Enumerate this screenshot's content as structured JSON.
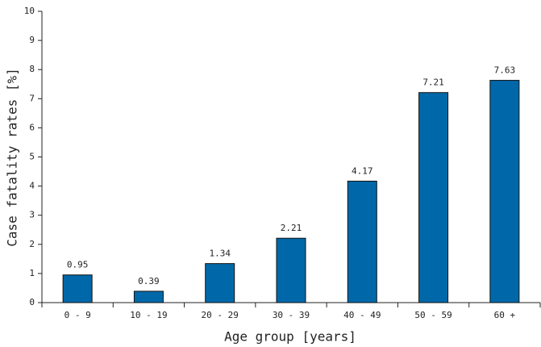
{
  "chart_data": {
    "type": "bar",
    "x_label": "Age group [years]",
    "y_label": "Case fatality rates [%]",
    "categories": [
      "0 - 9",
      "10 - 19",
      "20 - 29",
      "30 - 39",
      "40 - 49",
      "50 - 59",
      "60 +"
    ],
    "values": [
      0.95,
      0.39,
      1.34,
      2.21,
      4.17,
      7.21,
      7.63
    ],
    "color": "#0068a8",
    "ylim": [
      0,
      10
    ],
    "yticks": [
      0,
      1,
      2,
      3,
      4,
      5,
      6,
      7,
      8,
      9,
      10
    ]
  }
}
